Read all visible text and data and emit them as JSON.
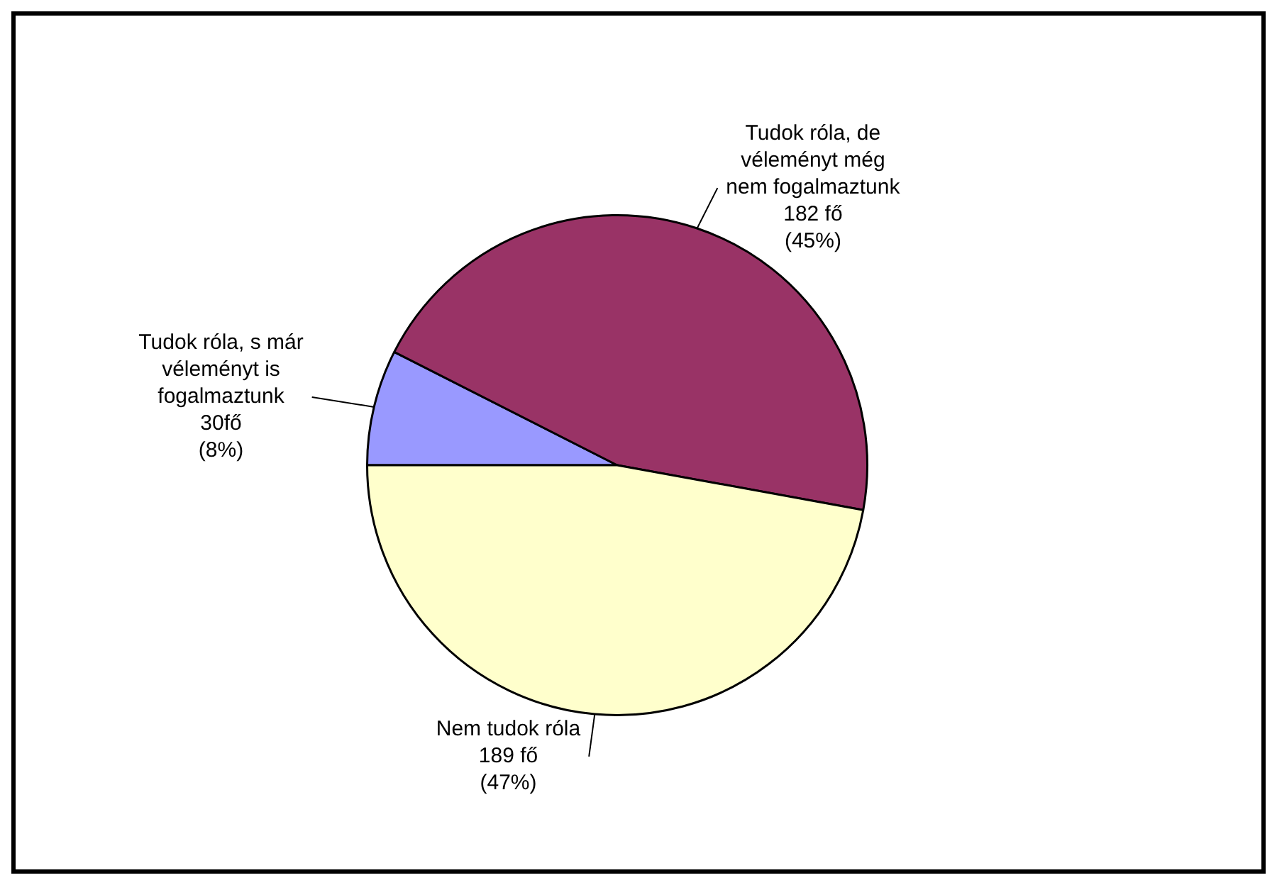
{
  "chart_data": {
    "type": "pie",
    "categories": [
      "Tudok róla, s már véleményt is fogalmaztunk",
      "Tudok róla, de véleményt még nem fogalmaztunk",
      "Nem tudok róla"
    ],
    "values": [
      30,
      182,
      189
    ],
    "colors": [
      "#9999ff",
      "#993366",
      "#ffffcc"
    ],
    "value_labels": [
      "30fő (8%)",
      "182 fő (45%)",
      "189 fő (47%)"
    ]
  }
}
